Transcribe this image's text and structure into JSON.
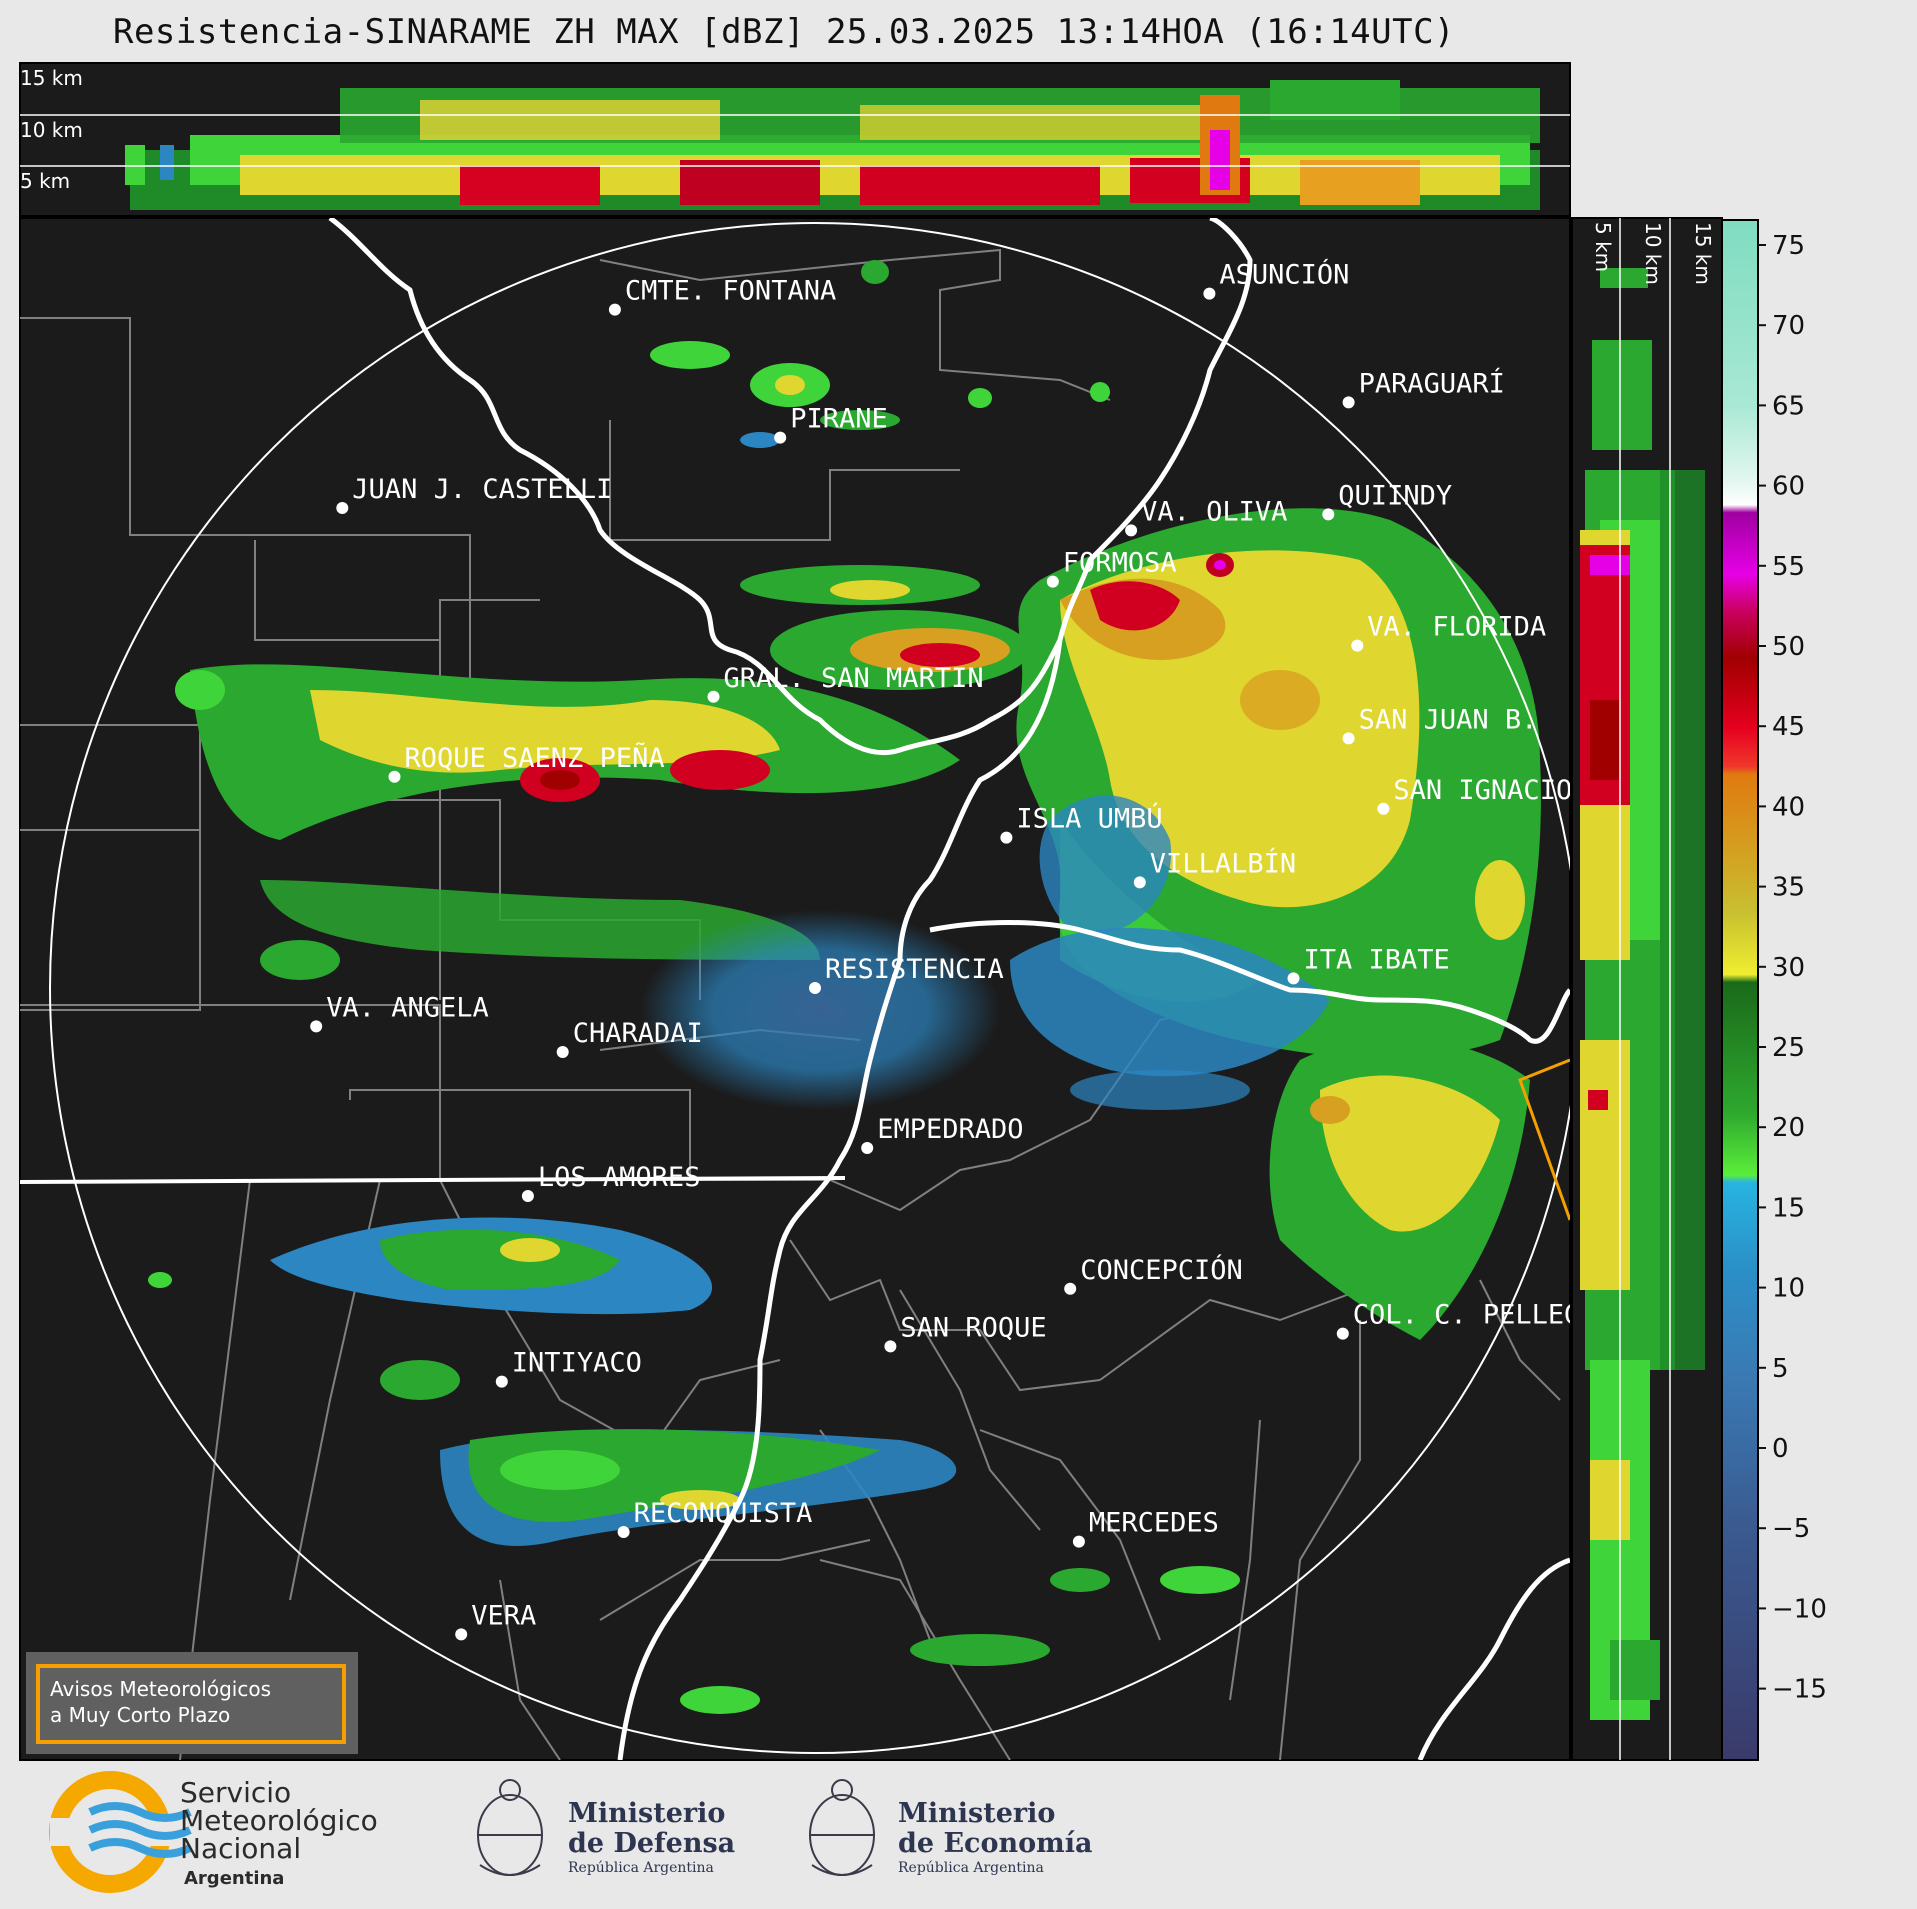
{
  "title": "Resistencia-SINARAME ZH MAX [dBZ] 25.03.2025 13:14HOA (16:14UTC)",
  "top_profile": {
    "height_labels": [
      "15 km",
      "10 km",
      "5 km"
    ]
  },
  "right_profile": {
    "height_labels": [
      "5 km",
      "10 km",
      "15 km"
    ]
  },
  "colorbar": {
    "ticks": [
      "75",
      "70",
      "65",
      "60",
      "55",
      "50",
      "45",
      "40",
      "35",
      "30",
      "25",
      "20",
      "15",
      "10",
      "5",
      "0",
      "−5",
      "−10",
      "−15"
    ]
  },
  "places": [
    {
      "name": "CMTE. FONTANA",
      "lon_lat": [
        -59.68,
        -25.33
      ]
    },
    {
      "name": "ASUNCIÓN",
      "lon_lat": [
        -57.63,
        -25.28
      ]
    },
    {
      "name": "PARAGUARÍ",
      "lon_lat": [
        -57.15,
        -25.62
      ]
    },
    {
      "name": "PIRANE",
      "lon_lat": [
        -59.11,
        -25.73
      ]
    },
    {
      "name": "JUAN J. CASTELLI",
      "lon_lat": [
        -60.62,
        -25.95
      ]
    },
    {
      "name": "VA. OLIVA",
      "lon_lat": [
        -57.9,
        -26.02
      ]
    },
    {
      "name": "QUIINDY",
      "lon_lat": [
        -57.22,
        -25.97
      ]
    },
    {
      "name": "FORMOSA",
      "lon_lat": [
        -58.17,
        -26.18
      ]
    },
    {
      "name": "VA. FLORIDA",
      "lon_lat": [
        -57.12,
        -26.38
      ]
    },
    {
      "name": "GRAL. SAN MARTIN",
      "lon_lat": [
        -59.34,
        -26.54
      ]
    },
    {
      "name": "SAN JUAN B.",
      "lon_lat": [
        -57.15,
        -26.67
      ]
    },
    {
      "name": "ROQUE SAENZ PEÑA",
      "lon_lat": [
        -60.44,
        -26.79
      ]
    },
    {
      "name": "SAN IGNACIO",
      "lon_lat": [
        -57.03,
        -26.89
      ]
    },
    {
      "name": "ISLA UMBÚ",
      "lon_lat": [
        -58.33,
        -26.98
      ]
    },
    {
      "name": "VILLALBÍN",
      "lon_lat": [
        -57.87,
        -27.12
      ]
    },
    {
      "name": "RESISTENCIA",
      "lon_lat": [
        -58.99,
        -27.45
      ]
    },
    {
      "name": "VA. ANGELA",
      "lon_lat": [
        -60.71,
        -27.57
      ]
    },
    {
      "name": "CHARADAI",
      "lon_lat": [
        -59.86,
        -27.65
      ]
    },
    {
      "name": "ITA IBATE",
      "lon_lat": [
        -57.34,
        -27.42
      ]
    },
    {
      "name": "EMPEDRADO",
      "lon_lat": [
        -58.81,
        -27.95
      ]
    },
    {
      "name": "LOS AMORES",
      "lon_lat": [
        -59.98,
        -28.1
      ]
    },
    {
      "name": "CONCEPCIÓN",
      "lon_lat": [
        -58.11,
        -28.39
      ]
    },
    {
      "name": "SAN ROQUE",
      "lon_lat": [
        -58.73,
        -28.57
      ]
    },
    {
      "name": "COL. C. PELLEGRINI",
      "lon_lat": [
        -57.17,
        -28.53
      ]
    },
    {
      "name": "INTIYACO",
      "lon_lat": [
        -60.07,
        -28.68
      ]
    },
    {
      "name": "RECONQUISTA",
      "lon_lat": [
        -59.65,
        -29.15
      ]
    },
    {
      "name": "MERCEDES",
      "lon_lat": [
        -58.08,
        -29.18
      ]
    },
    {
      "name": "VERA",
      "lon_lat": [
        -60.21,
        -29.47
      ]
    }
  ],
  "warning_box": {
    "line1": "Avisos Meteorológicos",
    "line2": "a Muy Corto Plazo"
  },
  "logos": {
    "smn": {
      "line1": "Servicio",
      "line2": "Meteorológico",
      "line3": "Nacional",
      "line4": "Argentina"
    },
    "defensa": {
      "line1": "Ministerio",
      "line2": "de Defensa",
      "line3": "República Argentina"
    },
    "economia": {
      "line1": "Ministerio",
      "line2": "de Economía",
      "line3": "República Argentina"
    }
  },
  "colors": {
    "background": "#1b1b1b",
    "page": "#e8e8e8",
    "river": "#ffffff",
    "border": "#808080",
    "warning_accent": "#f5a000",
    "smn_yellow": "#f5a800",
    "smn_blue": "#3aa0dc"
  }
}
